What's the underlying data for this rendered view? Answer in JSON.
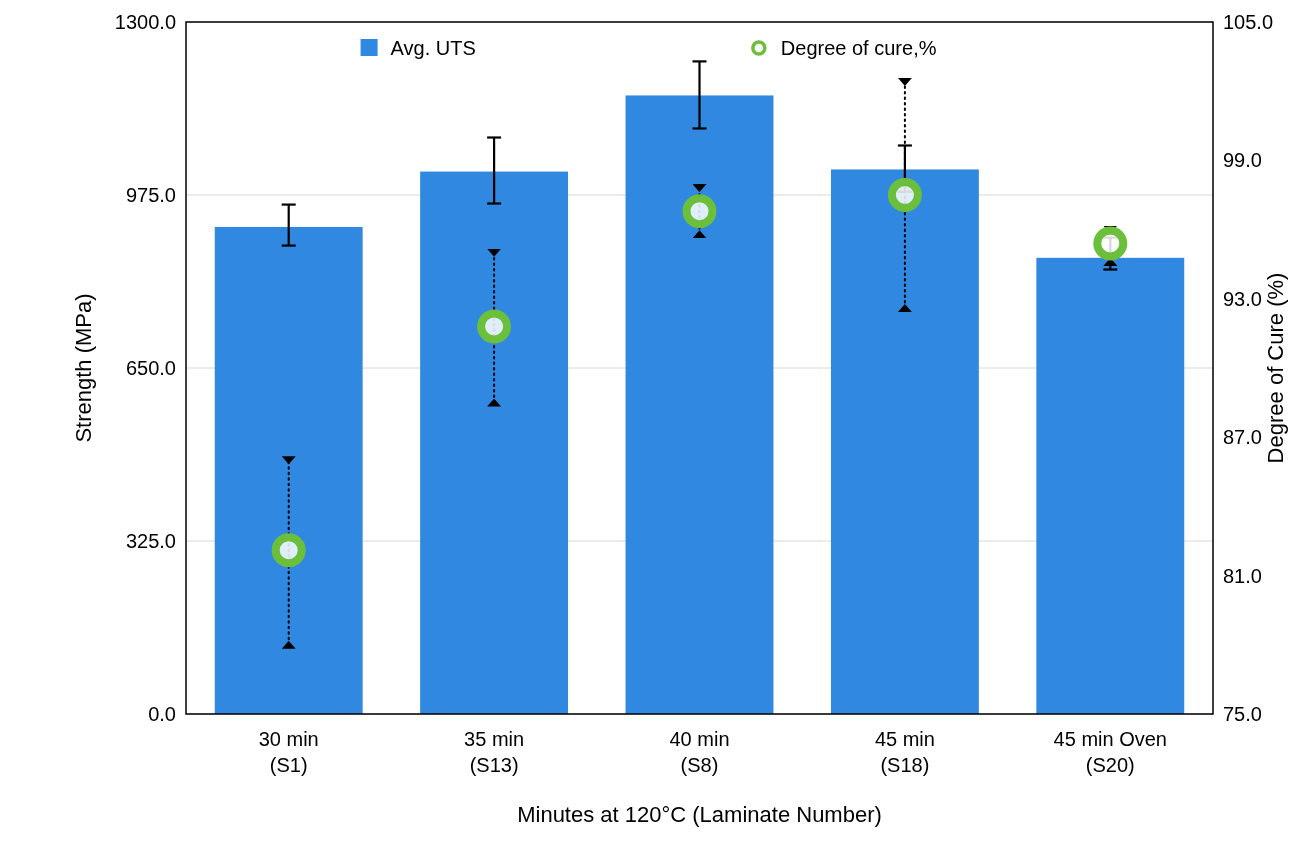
{
  "chart_data": {
    "type": "bar",
    "xlabel": "Minutes at 120°C (Laminate Number)",
    "ylabel": "Strength (MPa)",
    "y2label": "Degree of Cure (%)",
    "categories": [
      "30 min\n(S1)",
      "35 min\n(S13)",
      "40 min\n(S8)",
      "45 min\n(S18)",
      "45 min Oven\n(S20)"
    ],
    "series": [
      {
        "name": "Avg. UTS",
        "color": "#3088e0",
        "values": [
          915,
          1019,
          1162,
          1023,
          857
        ],
        "errors": [
          [
            880,
            957
          ],
          [
            959,
            1083
          ],
          [
            1100,
            1226
          ],
          [
            981,
            1068
          ],
          [
            835,
            895
          ]
        ]
      },
      {
        "name": "Degree of cure,%",
        "type": "scatter",
        "axis": "y2",
        "color": "#6cbf3a",
        "x": [
          "30 min\n(S1)",
          "35 min\n(S13)",
          "40 min\n(S8)",
          "45 min\n(S18)",
          "45 min Oven\n(S20)"
        ],
        "values": [
          82.1,
          91.8,
          96.8,
          97.5,
          95.4
        ],
        "errors": [
          [
            78.0,
            86.0
          ],
          [
            88.5,
            95.0
          ],
          [
            95.8,
            97.8
          ],
          [
            92.6,
            102.4
          ],
          [
            94.6,
            96.0
          ]
        ],
        "line_style": "dotted"
      }
    ],
    "ylim": [
      0,
      1300
    ],
    "yticks": [
      {
        "value": 0,
        "label": "0.0"
      },
      {
        "value": 325,
        "label": "325.0"
      },
      {
        "value": 650,
        "label": "650.0"
      },
      {
        "value": 975,
        "label": "975.0"
      },
      {
        "value": 1300,
        "label": "1300.0"
      }
    ],
    "y2lim": [
      75,
      105
    ],
    "y2ticks": [
      {
        "value": 75,
        "label": "75.0"
      },
      {
        "value": 81,
        "label": "81.0"
      },
      {
        "value": 87,
        "label": "87.0"
      },
      {
        "value": 93,
        "label": "93.0"
      },
      {
        "value": 99,
        "label": "99.0"
      },
      {
        "value": 105,
        "label": "105.0"
      }
    ],
    "grid": "y",
    "legend": "top",
    "marker": "circle"
  }
}
